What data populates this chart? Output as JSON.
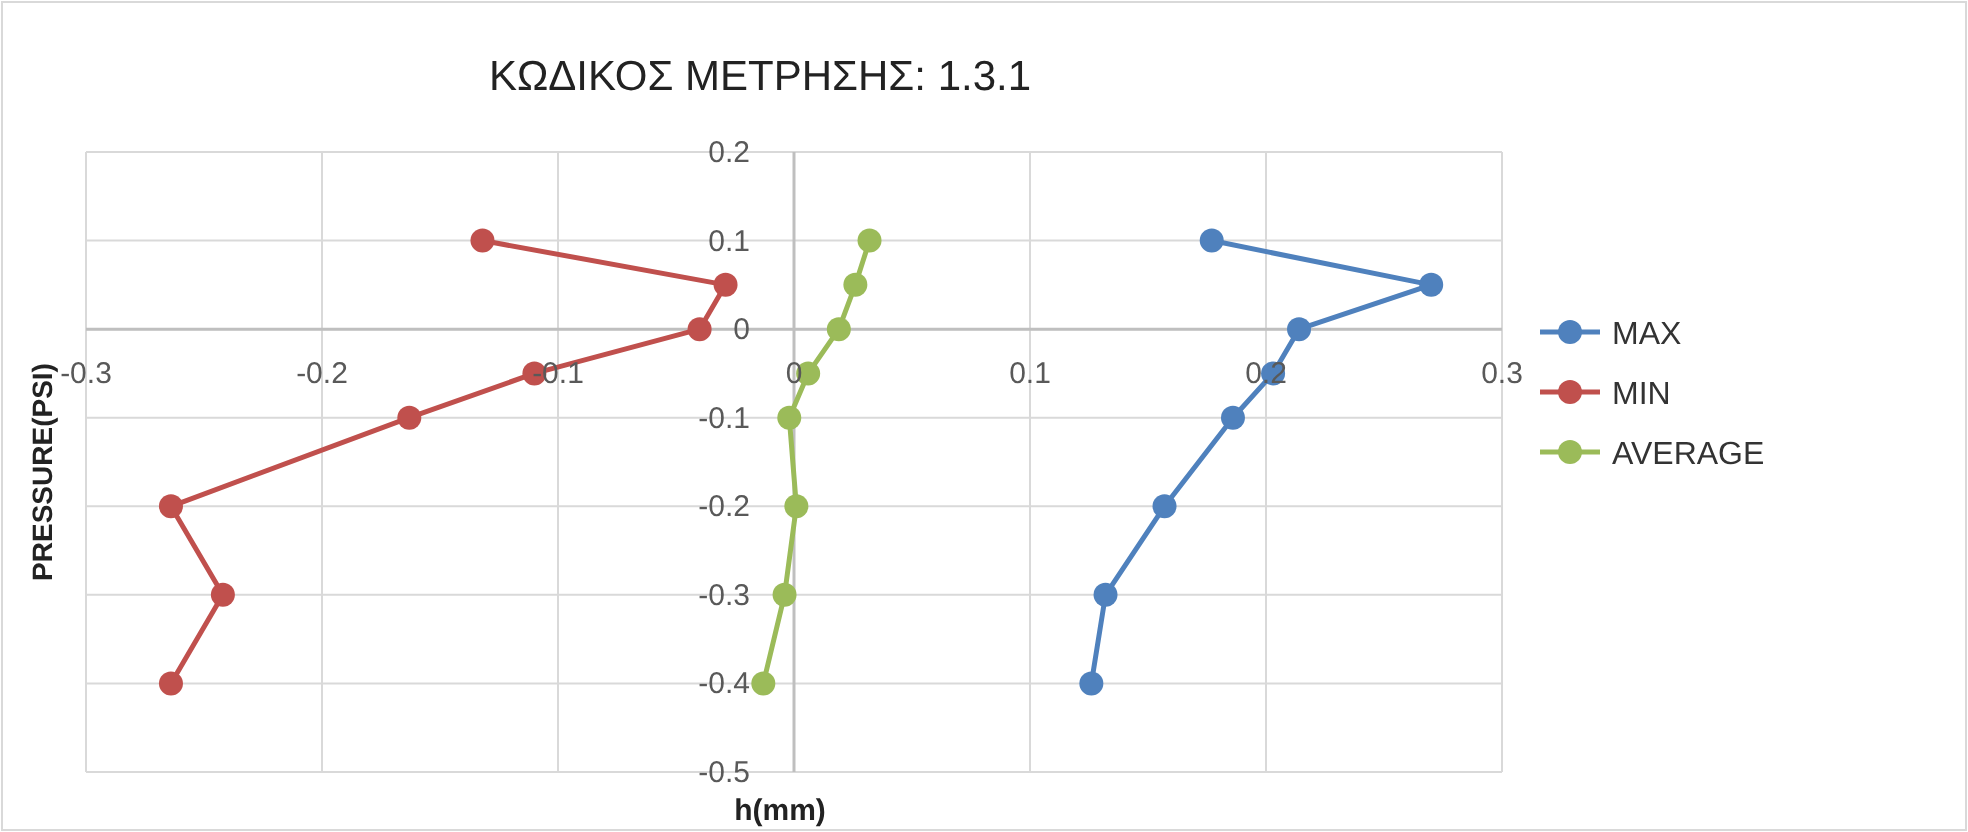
{
  "chart_data": {
    "type": "line",
    "title": "ΚΩΔΙΚΟΣ ΜΕΤΡΗΣΗΣ: 1.3.1",
    "xlabel": "h(mm)",
    "ylabel": "PRESSURE(PSI)",
    "xlim": [
      -0.3,
      0.3
    ],
    "xticks": [
      -0.3,
      -0.2,
      -0.1,
      0,
      0.1,
      0.2,
      0.3
    ],
    "ylim": [
      -0.5,
      0.2
    ],
    "yticks": [
      -0.5,
      -0.4,
      -0.3,
      -0.2,
      -0.1,
      0,
      0.1,
      0.2
    ],
    "grid": true,
    "legend": "right",
    "marker": "circle",
    "line_style": "solid",
    "series": [
      {
        "name": "MAX",
        "color": "#4f81bd",
        "x": [
          0.177,
          0.27,
          0.214,
          0.203,
          0.186,
          0.157,
          0.132,
          0.126
        ],
        "values": [
          0.1,
          0.05,
          0,
          -0.05,
          -0.1,
          -0.2,
          -0.3,
          -0.4
        ]
      },
      {
        "name": "MIN",
        "color": "#c0504d",
        "x": [
          -0.132,
          -0.029,
          -0.04,
          -0.11,
          -0.163,
          -0.264,
          -0.242,
          -0.264
        ],
        "values": [
          0.1,
          0.05,
          0,
          -0.05,
          -0.1,
          -0.2,
          -0.3,
          -0.4
        ]
      },
      {
        "name": "AVERAGE",
        "color": "#9bbb59",
        "x": [
          0.032,
          0.026,
          0.019,
          0.006,
          -0.002,
          0.001,
          -0.004,
          -0.013
        ],
        "values": [
          0.1,
          0.05,
          0,
          -0.05,
          -0.1,
          -0.2,
          -0.3,
          -0.4
        ]
      }
    ]
  }
}
